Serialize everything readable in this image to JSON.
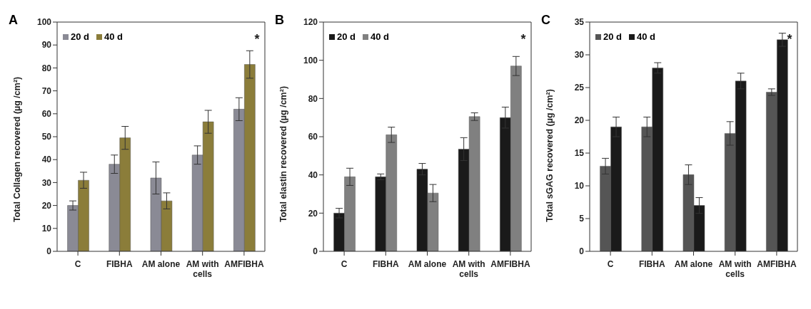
{
  "chart_data": [
    {
      "type": "bar",
      "title": "A",
      "ylabel": "Total Collagen recovered  (µg /cm²)",
      "categories": [
        "C",
        "FIBHA",
        "AM alone",
        "AM with cells",
        "AMFIBHA"
      ],
      "series": [
        {
          "name": "20 d",
          "color": "#8a8a95",
          "values": [
            20,
            38,
            32,
            42,
            62
          ],
          "errors": [
            2,
            4,
            7,
            4,
            5
          ]
        },
        {
          "name": "40 d",
          "color": "#8b7d3a",
          "values": [
            31,
            49.5,
            22,
            56.5,
            81.5
          ],
          "errors": [
            3.5,
            5,
            3.5,
            5,
            6
          ]
        }
      ],
      "ylim": [
        0,
        100
      ],
      "yticks": [
        0,
        10,
        20,
        30,
        40,
        50,
        60,
        70,
        80,
        90,
        100
      ],
      "legend": "top left",
      "grid": false,
      "annotations": [
        "*"
      ]
    },
    {
      "type": "bar",
      "title": "B",
      "ylabel": "Total elastin recovered  (µg /cm²)",
      "categories": [
        "C",
        "FIBHA",
        "AM alone",
        "AM with cells",
        "AMFIBHA"
      ],
      "series": [
        {
          "name": "20 d",
          "color": "#1a1a1a",
          "values": [
            20,
            39,
            43,
            53.5,
            70
          ],
          "errors": [
            2.5,
            1.5,
            3,
            6,
            5.5
          ]
        },
        {
          "name": "40 d",
          "color": "#808080",
          "values": [
            39,
            61,
            30.5,
            70.5,
            97
          ],
          "errors": [
            4.5,
            4,
            4.5,
            2,
            5
          ]
        }
      ],
      "ylim": [
        0,
        120
      ],
      "yticks": [
        0,
        20,
        40,
        60,
        80,
        100,
        120
      ],
      "legend": "top left",
      "grid": false,
      "annotations": [
        "*"
      ]
    },
    {
      "type": "bar",
      "title": "C",
      "ylabel": "Total sGAG recovered  (µg /cm²)",
      "categories": [
        "C",
        "FIBHA",
        "AM alone",
        "AM with cells",
        "AMFIBHA"
      ],
      "series": [
        {
          "name": "20 d",
          "color": "#555555",
          "values": [
            13,
            19,
            11.7,
            18,
            24.3
          ],
          "errors": [
            1.2,
            1.5,
            1.5,
            1.8,
            0.5
          ]
        },
        {
          "name": "40 d",
          "color": "#1a1a1a",
          "values": [
            19,
            28,
            7,
            26,
            32.3
          ],
          "errors": [
            1.5,
            0.8,
            1.2,
            1.2,
            1
          ]
        }
      ],
      "ylim": [
        0,
        35
      ],
      "yticks": [
        0,
        5,
        10,
        15,
        20,
        25,
        30,
        35
      ],
      "legend": "top left",
      "grid": false,
      "annotations": [
        "*"
      ]
    }
  ]
}
